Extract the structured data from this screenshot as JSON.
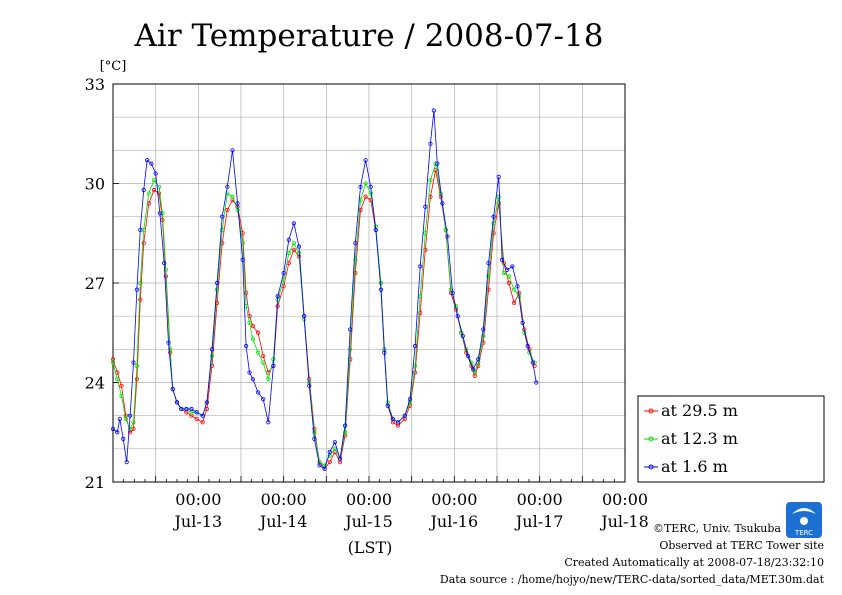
{
  "chart_data": {
    "type": "line",
    "title": "Air Temperature / 2008-07-18",
    "unit_label": "[°C]",
    "xlabel": "(LST)",
    "ylim": [
      21,
      33
    ],
    "xlim": [
      -1.0,
      5.0
    ],
    "y_ticks": [
      21,
      24,
      27,
      30,
      33
    ],
    "x_ticks": [
      {
        "x": 0,
        "time": "00:00",
        "date": "Jul-13"
      },
      {
        "x": 1,
        "time": "00:00",
        "date": "Jul-14"
      },
      {
        "x": 2,
        "time": "00:00",
        "date": "Jul-15"
      },
      {
        "x": 3,
        "time": "00:00",
        "date": "Jul-16"
      },
      {
        "x": 4,
        "time": "00:00",
        "date": "Jul-17"
      },
      {
        "x": 5,
        "time": "00:00",
        "date": "Jul-18"
      }
    ],
    "grid": true,
    "legend_position": "right",
    "series": [
      {
        "name": "at 29.5 m",
        "color": "#ff0000",
        "points": [
          [
            -1.0,
            24.7
          ],
          [
            -0.95,
            24.3
          ],
          [
            -0.9,
            23.9
          ],
          [
            -0.85,
            23.0
          ],
          [
            -0.8,
            22.5
          ],
          [
            -0.76,
            22.6
          ],
          [
            -0.72,
            24.1
          ],
          [
            -0.68,
            26.5
          ],
          [
            -0.64,
            28.2
          ],
          [
            -0.58,
            29.4
          ],
          [
            -0.52,
            29.8
          ],
          [
            -0.46,
            29.7
          ],
          [
            -0.42,
            28.9
          ],
          [
            -0.38,
            27.2
          ],
          [
            -0.33,
            24.9
          ],
          [
            -0.3,
            23.8
          ],
          [
            -0.25,
            23.4
          ],
          [
            -0.2,
            23.2
          ],
          [
            -0.14,
            23.1
          ],
          [
            -0.08,
            23.0
          ],
          [
            -0.02,
            22.9
          ],
          [
            0.05,
            22.8
          ],
          [
            0.1,
            23.2
          ],
          [
            0.16,
            24.5
          ],
          [
            0.22,
            26.4
          ],
          [
            0.28,
            28.2
          ],
          [
            0.34,
            29.2
          ],
          [
            0.4,
            29.5
          ],
          [
            0.46,
            29.3
          ],
          [
            0.52,
            28.5
          ],
          [
            0.56,
            26.7
          ],
          [
            0.6,
            26.0
          ],
          [
            0.64,
            25.7
          ],
          [
            0.7,
            25.5
          ],
          [
            0.76,
            24.8
          ],
          [
            0.82,
            24.3
          ],
          [
            0.88,
            24.5
          ],
          [
            0.93,
            26.3
          ],
          [
            1.0,
            26.9
          ],
          [
            1.06,
            27.6
          ],
          [
            1.12,
            28.0
          ],
          [
            1.18,
            27.8
          ],
          [
            1.24,
            26.0
          ],
          [
            1.3,
            24.1
          ],
          [
            1.36,
            22.6
          ],
          [
            1.42,
            21.6
          ],
          [
            1.48,
            21.4
          ],
          [
            1.54,
            21.6
          ],
          [
            1.6,
            21.9
          ],
          [
            1.66,
            21.6
          ],
          [
            1.72,
            22.4
          ],
          [
            1.78,
            24.7
          ],
          [
            1.84,
            27.3
          ],
          [
            1.9,
            29.2
          ],
          [
            1.96,
            29.6
          ],
          [
            2.02,
            29.5
          ],
          [
            2.08,
            28.6
          ],
          [
            2.14,
            27.0
          ],
          [
            2.18,
            25.0
          ],
          [
            2.22,
            23.3
          ],
          [
            2.28,
            22.8
          ],
          [
            2.34,
            22.7
          ],
          [
            2.42,
            22.9
          ],
          [
            2.48,
            23.3
          ],
          [
            2.54,
            24.3
          ],
          [
            2.6,
            26.1
          ],
          [
            2.66,
            28.0
          ],
          [
            2.72,
            29.6
          ],
          [
            2.78,
            30.4
          ],
          [
            2.84,
            29.6
          ],
          [
            2.9,
            28.6
          ],
          [
            2.96,
            26.7
          ],
          [
            3.02,
            26.2
          ],
          [
            3.08,
            25.5
          ],
          [
            3.14,
            24.9
          ],
          [
            3.2,
            24.5
          ],
          [
            3.24,
            24.2
          ],
          [
            3.28,
            24.5
          ],
          [
            3.34,
            25.2
          ],
          [
            3.4,
            26.8
          ],
          [
            3.46,
            28.5
          ],
          [
            3.52,
            29.4
          ],
          [
            3.58,
            27.6
          ],
          [
            3.64,
            27.0
          ],
          [
            3.7,
            26.4
          ],
          [
            3.76,
            26.7
          ],
          [
            3.82,
            25.6
          ],
          [
            3.88,
            25.0
          ],
          [
            3.94,
            24.5
          ]
        ]
      },
      {
        "name": "at 12.3 m",
        "color": "#00dd00",
        "points": [
          [
            -1.0,
            24.6
          ],
          [
            -0.95,
            24.1
          ],
          [
            -0.9,
            23.6
          ],
          [
            -0.85,
            22.9
          ],
          [
            -0.8,
            22.6
          ],
          [
            -0.76,
            22.8
          ],
          [
            -0.72,
            24.5
          ],
          [
            -0.68,
            27.0
          ],
          [
            -0.64,
            28.6
          ],
          [
            -0.58,
            29.7
          ],
          [
            -0.52,
            30.1
          ],
          [
            -0.46,
            29.9
          ],
          [
            -0.42,
            29.1
          ],
          [
            -0.38,
            27.4
          ],
          [
            -0.33,
            25.0
          ],
          [
            -0.3,
            23.8
          ],
          [
            -0.25,
            23.4
          ],
          [
            -0.2,
            23.2
          ],
          [
            -0.14,
            23.2
          ],
          [
            -0.08,
            23.1
          ],
          [
            -0.02,
            23.1
          ],
          [
            0.05,
            23.0
          ],
          [
            0.1,
            23.4
          ],
          [
            0.16,
            24.8
          ],
          [
            0.22,
            26.8
          ],
          [
            0.28,
            28.6
          ],
          [
            0.34,
            29.7
          ],
          [
            0.4,
            29.6
          ],
          [
            0.46,
            29.2
          ],
          [
            0.52,
            28.2
          ],
          [
            0.56,
            26.3
          ],
          [
            0.6,
            25.8
          ],
          [
            0.64,
            25.3
          ],
          [
            0.7,
            24.9
          ],
          [
            0.76,
            24.6
          ],
          [
            0.82,
            24.1
          ],
          [
            0.88,
            24.7
          ],
          [
            0.93,
            26.5
          ],
          [
            1.0,
            27.1
          ],
          [
            1.06,
            27.9
          ],
          [
            1.12,
            28.2
          ],
          [
            1.18,
            27.9
          ],
          [
            1.24,
            25.9
          ],
          [
            1.3,
            24.0
          ],
          [
            1.36,
            22.5
          ],
          [
            1.42,
            21.6
          ],
          [
            1.48,
            21.5
          ],
          [
            1.54,
            21.8
          ],
          [
            1.6,
            22.0
          ],
          [
            1.66,
            21.7
          ],
          [
            1.72,
            22.5
          ],
          [
            1.78,
            25.0
          ],
          [
            1.84,
            27.7
          ],
          [
            1.9,
            29.5
          ],
          [
            1.96,
            30.0
          ],
          [
            2.02,
            29.7
          ],
          [
            2.08,
            28.7
          ],
          [
            2.14,
            27.0
          ],
          [
            2.18,
            25.0
          ],
          [
            2.22,
            23.4
          ],
          [
            2.28,
            22.9
          ],
          [
            2.34,
            22.8
          ],
          [
            2.42,
            23.0
          ],
          [
            2.48,
            23.4
          ],
          [
            2.54,
            24.5
          ],
          [
            2.6,
            26.6
          ],
          [
            2.66,
            28.5
          ],
          [
            2.72,
            30.1
          ],
          [
            2.78,
            30.6
          ],
          [
            2.84,
            29.7
          ],
          [
            2.9,
            28.6
          ],
          [
            2.96,
            26.8
          ],
          [
            3.02,
            26.3
          ],
          [
            3.08,
            25.5
          ],
          [
            3.14,
            25.0
          ],
          [
            3.2,
            24.6
          ],
          [
            3.24,
            24.3
          ],
          [
            3.28,
            24.6
          ],
          [
            3.34,
            25.4
          ],
          [
            3.4,
            27.2
          ],
          [
            3.46,
            28.8
          ],
          [
            3.52,
            29.6
          ],
          [
            3.58,
            27.3
          ],
          [
            3.64,
            27.2
          ],
          [
            3.7,
            26.8
          ],
          [
            3.76,
            26.6
          ],
          [
            3.82,
            25.5
          ],
          [
            3.88,
            24.9
          ],
          [
            3.94,
            24.6
          ]
        ]
      },
      {
        "name": "at 1.6 m",
        "color": "#0000ff",
        "points": [
          [
            -1.0,
            22.6
          ],
          [
            -0.95,
            22.5
          ],
          [
            -0.92,
            22.9
          ],
          [
            -0.88,
            22.3
          ],
          [
            -0.84,
            21.6
          ],
          [
            -0.8,
            23.0
          ],
          [
            -0.76,
            24.6
          ],
          [
            -0.72,
            26.8
          ],
          [
            -0.68,
            28.6
          ],
          [
            -0.64,
            29.8
          ],
          [
            -0.6,
            30.7
          ],
          [
            -0.55,
            30.6
          ],
          [
            -0.5,
            30.3
          ],
          [
            -0.45,
            29.1
          ],
          [
            -0.4,
            27.6
          ],
          [
            -0.35,
            25.2
          ],
          [
            -0.3,
            23.8
          ],
          [
            -0.25,
            23.4
          ],
          [
            -0.2,
            23.2
          ],
          [
            -0.14,
            23.2
          ],
          [
            -0.08,
            23.2
          ],
          [
            -0.02,
            23.1
          ],
          [
            0.05,
            23.0
          ],
          [
            0.1,
            23.4
          ],
          [
            0.16,
            25.0
          ],
          [
            0.22,
            27.0
          ],
          [
            0.28,
            29.0
          ],
          [
            0.34,
            29.9
          ],
          [
            0.4,
            31.0
          ],
          [
            0.46,
            29.4
          ],
          [
            0.52,
            27.7
          ],
          [
            0.56,
            25.1
          ],
          [
            0.6,
            24.3
          ],
          [
            0.64,
            24.1
          ],
          [
            0.7,
            23.7
          ],
          [
            0.76,
            23.5
          ],
          [
            0.82,
            22.8
          ],
          [
            0.88,
            24.5
          ],
          [
            0.93,
            26.6
          ],
          [
            1.0,
            27.3
          ],
          [
            1.06,
            28.3
          ],
          [
            1.12,
            28.8
          ],
          [
            1.18,
            28.1
          ],
          [
            1.24,
            26.0
          ],
          [
            1.3,
            23.9
          ],
          [
            1.36,
            22.3
          ],
          [
            1.42,
            21.5
          ],
          [
            1.48,
            21.4
          ],
          [
            1.54,
            21.9
          ],
          [
            1.6,
            22.2
          ],
          [
            1.66,
            21.7
          ],
          [
            1.72,
            22.7
          ],
          [
            1.78,
            25.6
          ],
          [
            1.84,
            28.2
          ],
          [
            1.9,
            29.9
          ],
          [
            1.96,
            30.7
          ],
          [
            2.02,
            29.9
          ],
          [
            2.08,
            28.6
          ],
          [
            2.14,
            26.8
          ],
          [
            2.18,
            24.9
          ],
          [
            2.22,
            23.3
          ],
          [
            2.28,
            22.9
          ],
          [
            2.34,
            22.8
          ],
          [
            2.42,
            23.0
          ],
          [
            2.48,
            23.5
          ],
          [
            2.54,
            25.1
          ],
          [
            2.6,
            27.5
          ],
          [
            2.66,
            29.3
          ],
          [
            2.72,
            31.2
          ],
          [
            2.76,
            32.2
          ],
          [
            2.8,
            30.6
          ],
          [
            2.86,
            29.4
          ],
          [
            2.92,
            28.4
          ],
          [
            2.98,
            26.7
          ],
          [
            3.04,
            26.0
          ],
          [
            3.1,
            25.4
          ],
          [
            3.16,
            24.8
          ],
          [
            3.22,
            24.4
          ],
          [
            3.28,
            24.7
          ],
          [
            3.34,
            25.6
          ],
          [
            3.4,
            27.6
          ],
          [
            3.46,
            29.0
          ],
          [
            3.52,
            30.2
          ],
          [
            3.56,
            27.7
          ],
          [
            3.62,
            27.4
          ],
          [
            3.68,
            27.5
          ],
          [
            3.74,
            26.9
          ],
          [
            3.8,
            25.8
          ],
          [
            3.86,
            25.1
          ],
          [
            3.92,
            24.6
          ],
          [
            3.96,
            24.0
          ]
        ]
      }
    ]
  },
  "credits": {
    "copyright": "©TERC, Univ. Tsukuba",
    "observed": "Observed at TERC Tower site",
    "created": "Created Automatically at 2008-07-18/23:32:10",
    "source": "Data source : /home/hojyo/new/TERC-data/sorted_data/MET.30m.dat",
    "logo_text": "TERC"
  }
}
